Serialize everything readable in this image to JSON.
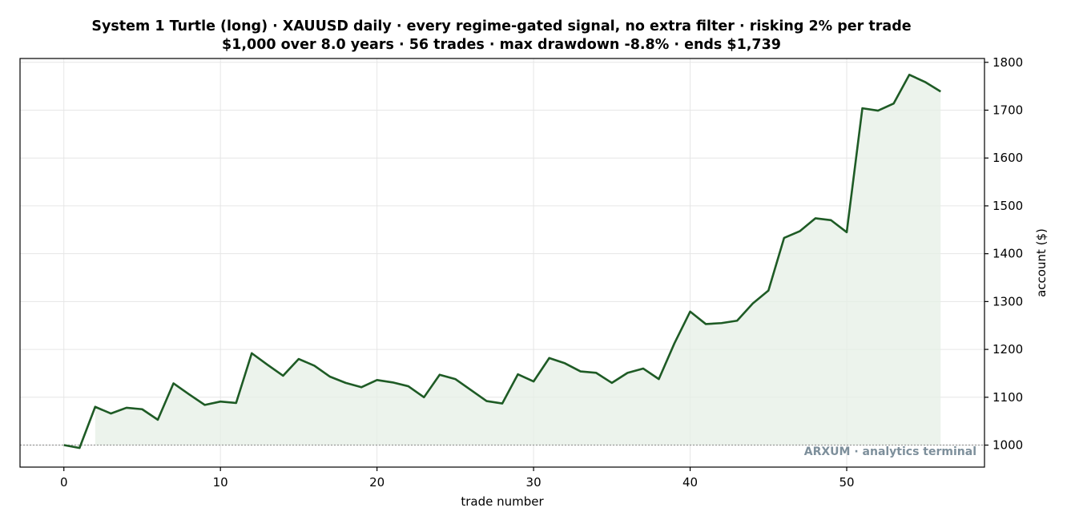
{
  "chart_data": {
    "type": "line",
    "title": "System 1 Turtle (long) · XAUUSD daily · every regime-gated signal, no extra filter · risking 2% per trade",
    "subtitle": "$1,000 over 8.0 years · 56 trades · max drawdown -8.8% · ends $1,739",
    "xlabel": "trade number",
    "ylabel": "account ($)",
    "xlim": [
      -2.8,
      58.8
    ],
    "ylim": [
      954,
      1808
    ],
    "xticks": [
      0,
      10,
      20,
      30,
      40,
      50
    ],
    "yticks": [
      1000,
      1100,
      1200,
      1300,
      1400,
      1500,
      1600,
      1700,
      1800
    ],
    "y_axis_side": "right",
    "grid": true,
    "baseline": 1000,
    "x": [
      0,
      1,
      2,
      3,
      4,
      5,
      6,
      7,
      8,
      9,
      10,
      11,
      12,
      13,
      14,
      15,
      16,
      17,
      18,
      19,
      20,
      21,
      22,
      23,
      24,
      25,
      26,
      27,
      28,
      29,
      30,
      31,
      32,
      33,
      34,
      35,
      36,
      37,
      38,
      39,
      40,
      41,
      42,
      43,
      44,
      45,
      46,
      47,
      48,
      49,
      50,
      51,
      52,
      53,
      54,
      55,
      56
    ],
    "y": [
      1000,
      994,
      1080,
      1066,
      1078,
      1075,
      1053,
      1129,
      1106,
      1084,
      1091,
      1088,
      1192,
      1168,
      1145,
      1180,
      1166,
      1143,
      1130,
      1121,
      1136,
      1131,
      1123,
      1100,
      1147,
      1138,
      1115,
      1092,
      1087,
      1148,
      1133,
      1182,
      1171,
      1154,
      1151,
      1130,
      1151,
      1160,
      1138,
      1213,
      1279,
      1253,
      1255,
      1260,
      1296,
      1323,
      1433,
      1447,
      1474,
      1470,
      1445,
      1704,
      1699,
      1714,
      1774,
      1759,
      1739
    ],
    "line_color": "#1e5b25",
    "fill_color": "#e6efe6",
    "watermark": "ARXUM · analytics terminal",
    "watermark_color": "#7d8f9b"
  }
}
